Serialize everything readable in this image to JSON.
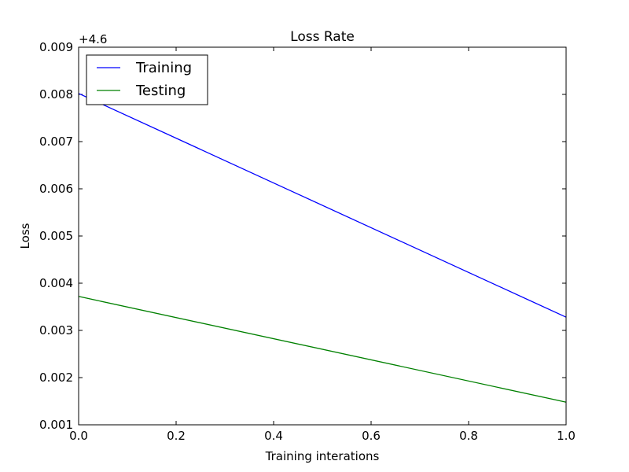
{
  "chart_data": {
    "type": "line",
    "title": "Loss Rate",
    "xlabel": "Training interations",
    "ylabel": "Loss",
    "y_offset_label": "+4.6",
    "xlim": [
      0.0,
      1.0
    ],
    "ylim": [
      0.001,
      0.009
    ],
    "x_ticks": [
      "0.0",
      "0.2",
      "0.4",
      "0.6",
      "0.8",
      "1.0"
    ],
    "y_ticks": [
      "0.001",
      "0.002",
      "0.003",
      "0.004",
      "0.005",
      "0.006",
      "0.007",
      "0.008",
      "0.009"
    ],
    "grid": false,
    "legend_position": "top-left",
    "series": [
      {
        "name": "Training",
        "color": "#0000ff",
        "x": [
          0.0,
          1.0
        ],
        "y": [
          0.00802,
          0.00328
        ]
      },
      {
        "name": "Testing",
        "color": "#008000",
        "x": [
          0.0,
          1.0
        ],
        "y": [
          0.00372,
          0.00148
        ]
      }
    ]
  }
}
